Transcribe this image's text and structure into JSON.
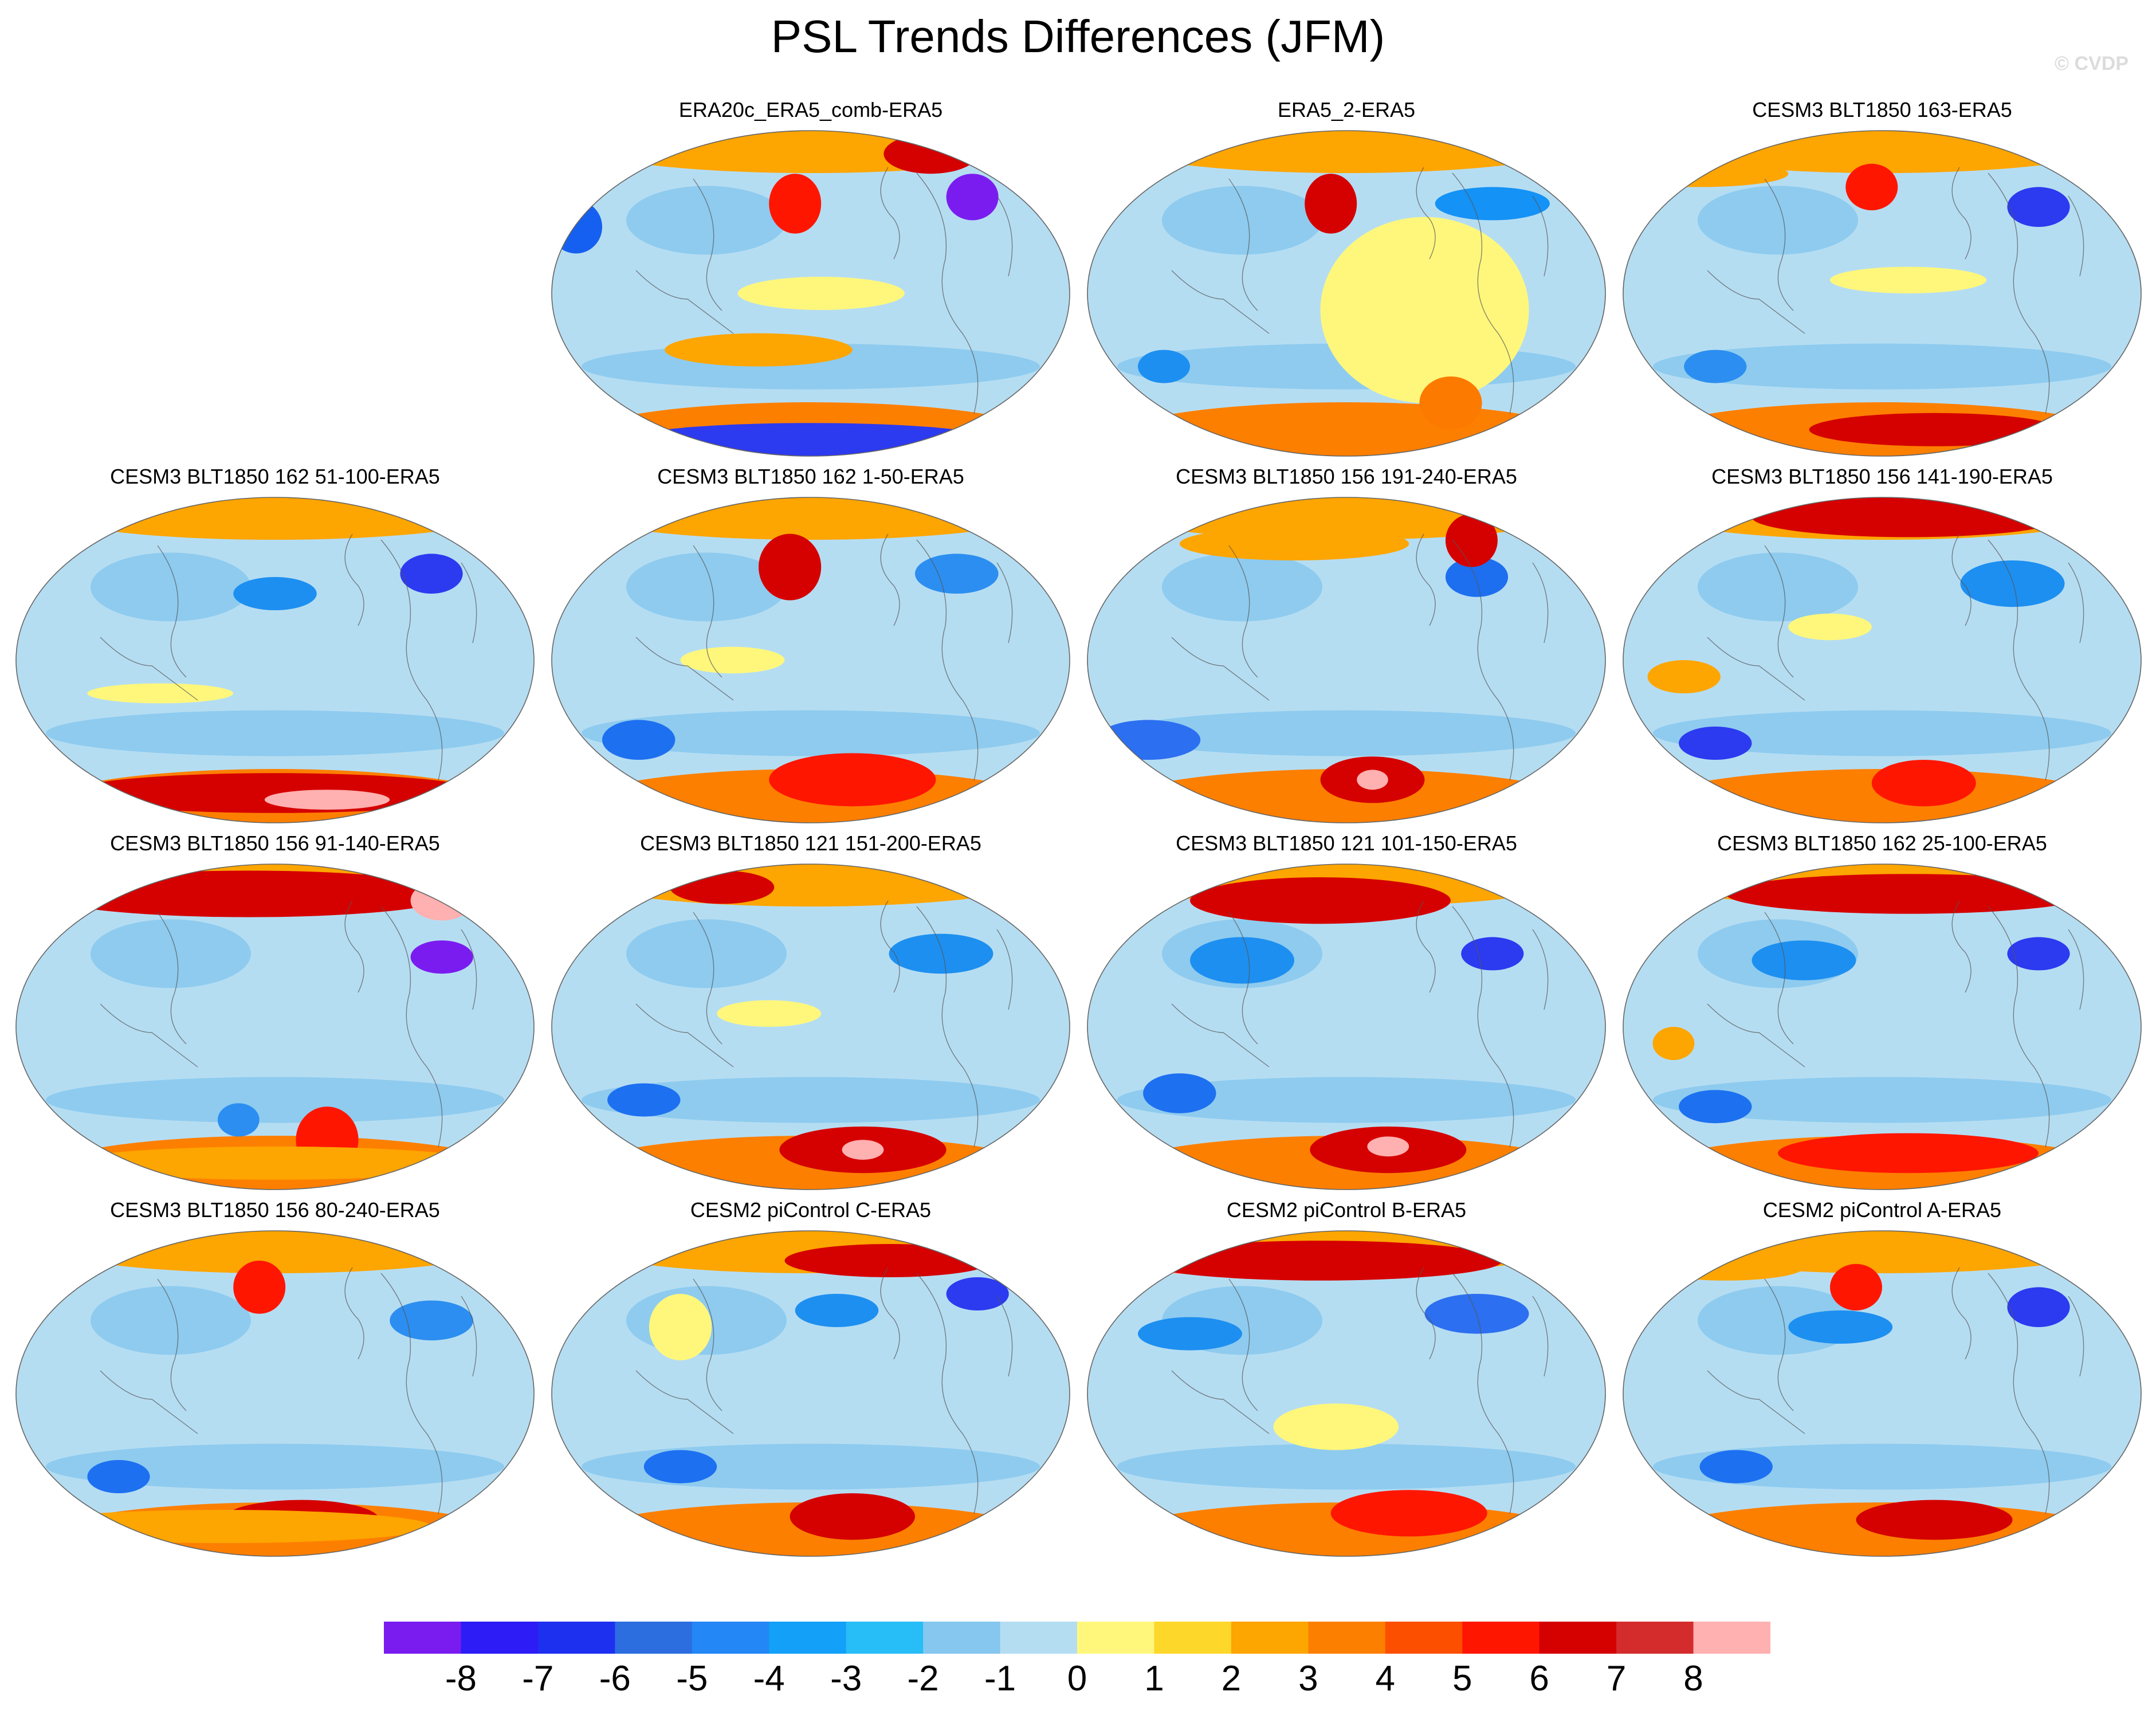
{
  "figure": {
    "title": "PSL Trends Differences (JFM)",
    "watermark": "© CVDP"
  },
  "panels": [
    {
      "title": "ERA20c_ERA5_comb-ERA5",
      "blobs": [
        [
          "#ff1600",
          0.47,
          0.23,
          0.05,
          0.09
        ],
        [
          "#7a1cf0",
          0.81,
          0.21,
          0.05,
          0.07
        ],
        [
          "#d50000",
          0.73,
          0.08,
          0.09,
          0.06
        ],
        [
          "#1560f0",
          0.05,
          0.3,
          0.05,
          0.08
        ],
        [
          "#fda500",
          0.4,
          0.67,
          0.18,
          0.05
        ],
        [
          "#2c3af0",
          0.5,
          0.94,
          0.35,
          0.05
        ],
        [
          "#fff77c",
          0.52,
          0.5,
          0.16,
          0.05
        ]
      ]
    },
    {
      "title": "ERA5_2-ERA5",
      "blobs": [
        [
          "#d50000",
          0.47,
          0.23,
          0.05,
          0.09
        ],
        [
          "#1492f5",
          0.78,
          0.23,
          0.11,
          0.05
        ],
        [
          "#fff77c",
          0.65,
          0.55,
          0.2,
          0.28
        ],
        [
          "#fd7a00",
          0.7,
          0.83,
          0.06,
          0.08
        ],
        [
          "#1d8ff0",
          0.15,
          0.72,
          0.05,
          0.05
        ]
      ]
    },
    {
      "title": "CESM3 BLT1850 163-ERA5",
      "blobs": [
        [
          "#ff1600",
          0.48,
          0.18,
          0.05,
          0.07
        ],
        [
          "#2c3af0",
          0.8,
          0.24,
          0.06,
          0.06
        ],
        [
          "#fda500",
          0.15,
          0.14,
          0.17,
          0.04
        ],
        [
          "#2c8ef0",
          0.18,
          0.72,
          0.06,
          0.05
        ],
        [
          "#d50000",
          0.6,
          0.91,
          0.24,
          0.05
        ],
        [
          "#fff77c",
          0.55,
          0.46,
          0.15,
          0.04
        ]
      ]
    },
    {
      "title": "CESM3 BLT1850 162 51-100-ERA5",
      "blobs": [
        [
          "#2c3af0",
          0.8,
          0.24,
          0.06,
          0.06
        ],
        [
          "#1d8ff0",
          0.5,
          0.3,
          0.08,
          0.05
        ],
        [
          "#d50000",
          0.5,
          0.9,
          0.4,
          0.06
        ],
        [
          "#ffb0b0",
          0.6,
          0.92,
          0.12,
          0.03
        ],
        [
          "#fff77c",
          0.28,
          0.6,
          0.14,
          0.03
        ]
      ]
    },
    {
      "title": "CESM3 BLT1850 162 1-50-ERA5",
      "blobs": [
        [
          "#ffb0b0",
          0.46,
          0.22,
          0.03,
          0.06
        ],
        [
          "#d50000",
          0.46,
          0.22,
          0.06,
          0.1
        ],
        [
          "#2c8ef0",
          0.78,
          0.24,
          0.08,
          0.06
        ],
        [
          "#1d70f0",
          0.17,
          0.74,
          0.07,
          0.06
        ],
        [
          "#ffb0b0",
          0.58,
          0.85,
          0.06,
          0.07
        ],
        [
          "#ff1600",
          0.58,
          0.86,
          0.16,
          0.08
        ],
        [
          "#fff77c",
          0.35,
          0.5,
          0.1,
          0.04
        ]
      ]
    },
    {
      "title": "CESM3 BLT1850 156 191-240-ERA5",
      "blobs": [
        [
          "#1d6ff0",
          0.75,
          0.25,
          0.06,
          0.06
        ],
        [
          "#d50000",
          0.74,
          0.14,
          0.05,
          0.08
        ],
        [
          "#2c6ff0",
          0.12,
          0.74,
          0.1,
          0.06
        ],
        [
          "#d50000",
          0.55,
          0.86,
          0.1,
          0.07
        ],
        [
          "#ffb0b0",
          0.55,
          0.86,
          0.03,
          0.03
        ],
        [
          "#fda500",
          0.4,
          0.15,
          0.22,
          0.05
        ]
      ]
    },
    {
      "title": "CESM3 BLT1850 156 141-190-ERA5",
      "blobs": [
        [
          "#d50000",
          0.55,
          0.07,
          0.3,
          0.06
        ],
        [
          "#1d8ff0",
          0.75,
          0.27,
          0.1,
          0.07
        ],
        [
          "#2c3af0",
          0.18,
          0.75,
          0.07,
          0.05
        ],
        [
          "#ff1600",
          0.58,
          0.87,
          0.1,
          0.07
        ],
        [
          "#fda500",
          0.12,
          0.55,
          0.07,
          0.05
        ],
        [
          "#fff77c",
          0.4,
          0.4,
          0.08,
          0.04
        ]
      ]
    },
    {
      "title": "CESM3 BLT1850 156 91-140-ERA5",
      "blobs": [
        [
          "#d50000",
          0.45,
          0.1,
          0.4,
          0.07
        ],
        [
          "#ffb0b0",
          0.82,
          0.12,
          0.06,
          0.06
        ],
        [
          "#7a1cf0",
          0.82,
          0.29,
          0.06,
          0.05
        ],
        [
          "#ff1600",
          0.6,
          0.84,
          0.06,
          0.1
        ],
        [
          "#fda500",
          0.5,
          0.91,
          0.4,
          0.05
        ],
        [
          "#2c8ef0",
          0.43,
          0.78,
          0.04,
          0.05
        ]
      ]
    },
    {
      "title": "CESM3 BLT1850 121 151-200-ERA5",
      "blobs": [
        [
          "#d50000",
          0.33,
          0.08,
          0.1,
          0.05
        ],
        [
          "#1d8ff0",
          0.75,
          0.28,
          0.1,
          0.06
        ],
        [
          "#1d70f0",
          0.18,
          0.72,
          0.07,
          0.05
        ],
        [
          "#d50000",
          0.6,
          0.87,
          0.16,
          0.07
        ],
        [
          "#ffb0b0",
          0.6,
          0.87,
          0.04,
          0.03
        ],
        [
          "#fff77c",
          0.42,
          0.46,
          0.1,
          0.04
        ]
      ]
    },
    {
      "title": "CESM3 BLT1850 121 101-150-ERA5",
      "blobs": [
        [
          "#d50000",
          0.45,
          0.12,
          0.25,
          0.07
        ],
        [
          "#1d8ff0",
          0.3,
          0.3,
          0.1,
          0.07
        ],
        [
          "#2c3af0",
          0.78,
          0.28,
          0.06,
          0.05
        ],
        [
          "#1d70f0",
          0.18,
          0.7,
          0.07,
          0.06
        ],
        [
          "#d50000",
          0.58,
          0.87,
          0.15,
          0.07
        ],
        [
          "#ffb0b0",
          0.58,
          0.86,
          0.04,
          0.03
        ]
      ]
    },
    {
      "title": "CESM3 BLT1850 162 25-100-ERA5",
      "blobs": [
        [
          "#d50000",
          0.55,
          0.1,
          0.35,
          0.06
        ],
        [
          "#2c3af0",
          0.8,
          0.28,
          0.06,
          0.05
        ],
        [
          "#1d8ff0",
          0.35,
          0.3,
          0.1,
          0.06
        ],
        [
          "#1d70f0",
          0.18,
          0.74,
          0.07,
          0.05
        ],
        [
          "#ff1600",
          0.55,
          0.88,
          0.25,
          0.06
        ],
        [
          "#fda500",
          0.1,
          0.55,
          0.04,
          0.05
        ]
      ]
    },
    {
      "title": "CESM3 BLT1850 156 80-240-ERA5",
      "blobs": [
        [
          "#ff1600",
          0.47,
          0.18,
          0.05,
          0.08
        ],
        [
          "#2c8ef0",
          0.8,
          0.28,
          0.08,
          0.06
        ],
        [
          "#1d70f0",
          0.2,
          0.75,
          0.06,
          0.05
        ],
        [
          "#d50000",
          0.55,
          0.88,
          0.15,
          0.06
        ],
        [
          "#fda500",
          0.4,
          0.9,
          0.4,
          0.05
        ]
      ]
    },
    {
      "title": "CESM2 piControl C-ERA5",
      "blobs": [
        [
          "#d50000",
          0.65,
          0.1,
          0.2,
          0.05
        ],
        [
          "#2c3af0",
          0.82,
          0.2,
          0.06,
          0.05
        ],
        [
          "#1d8ff0",
          0.55,
          0.25,
          0.08,
          0.05
        ],
        [
          "#1d70f0",
          0.25,
          0.72,
          0.07,
          0.05
        ],
        [
          "#d50000",
          0.58,
          0.87,
          0.12,
          0.07
        ],
        [
          "#fff77c",
          0.25,
          0.3,
          0.06,
          0.1
        ]
      ]
    },
    {
      "title": "CESM2 piControl B-ERA5",
      "blobs": [
        [
          "#ffb0b0",
          0.18,
          0.1,
          0.08,
          0.04
        ],
        [
          "#d50000",
          0.45,
          0.1,
          0.35,
          0.06
        ],
        [
          "#2c6ff0",
          0.75,
          0.26,
          0.1,
          0.06
        ],
        [
          "#1d8ff0",
          0.2,
          0.32,
          0.1,
          0.05
        ],
        [
          "#fff77c",
          0.48,
          0.6,
          0.12,
          0.07
        ],
        [
          "#ff1600",
          0.62,
          0.86,
          0.15,
          0.07
        ]
      ]
    },
    {
      "title": "CESM2 piControl A-ERA5",
      "blobs": [
        [
          "#ff1600",
          0.45,
          0.18,
          0.05,
          0.07
        ],
        [
          "#2c3af0",
          0.8,
          0.24,
          0.06,
          0.06
        ],
        [
          "#1d8ff0",
          0.42,
          0.3,
          0.1,
          0.05
        ],
        [
          "#1d70f0",
          0.22,
          0.72,
          0.07,
          0.05
        ],
        [
          "#d50000",
          0.6,
          0.88,
          0.15,
          0.06
        ],
        [
          "#fda500",
          0.2,
          0.12,
          0.15,
          0.04
        ]
      ]
    }
  ],
  "colorbar": {
    "colors": [
      "#7a1cf0",
      "#2d1cf5",
      "#1d30f0",
      "#2c6de0",
      "#2387f5",
      "#13a0f8",
      "#27bdf7",
      "#85c7ee",
      "#b5ddf2",
      "#fff77c",
      "#fed72b",
      "#fda500",
      "#fd7f00",
      "#fd4f00",
      "#ff1600",
      "#d50000",
      "#d42c2c",
      "#ffb0b0"
    ],
    "labels": [
      "-8",
      "-7",
      "-6",
      "-5",
      "-4",
      "-3",
      "-2",
      "-1",
      "0",
      "1",
      "2",
      "3",
      "4",
      "5",
      "6",
      "7",
      "8"
    ]
  },
  "panel_palette": {
    "ocean_base": "#b5ddf2",
    "north_band": "#fda500",
    "south_band": "#fd7f00",
    "mid_blue": "#85c7ee",
    "outline": "#666666",
    "coast": "#555555"
  }
}
